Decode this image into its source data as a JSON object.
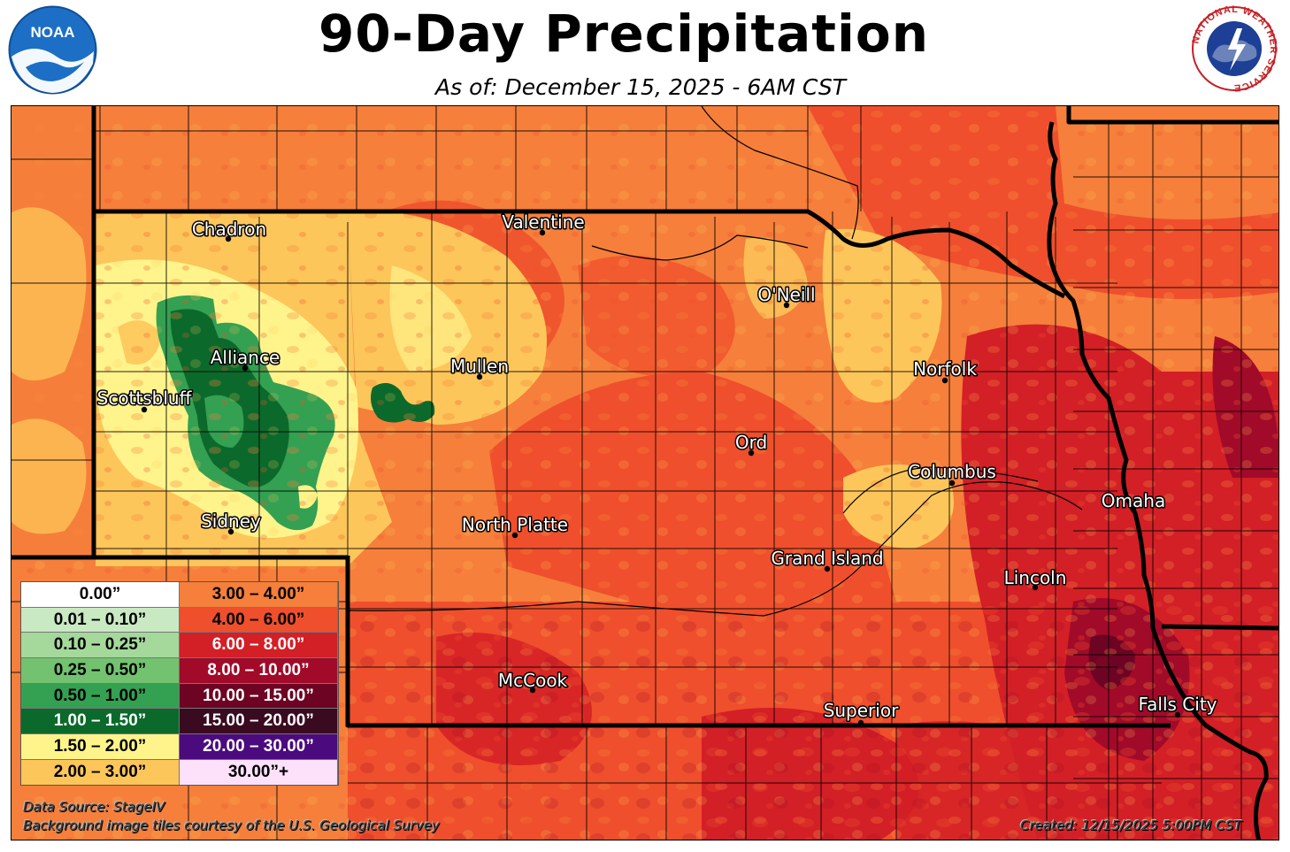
{
  "header": {
    "title": "90-Day Precipitation",
    "subtitle": "As of: December 15, 2025 - 6AM CST"
  },
  "logos": {
    "noaa_text": "NOAA",
    "nws_text": "NATIONAL WEATHER SERVICE"
  },
  "cities": [
    {
      "name": "Chadron"
    },
    {
      "name": "Valentine"
    },
    {
      "name": "O'Neill"
    },
    {
      "name": "Alliance"
    },
    {
      "name": "Mullen"
    },
    {
      "name": "Norfolk"
    },
    {
      "name": "Scottsbluff"
    },
    {
      "name": "Ord"
    },
    {
      "name": "Columbus"
    },
    {
      "name": "Omaha"
    },
    {
      "name": "Sidney"
    },
    {
      "name": "North Platte"
    },
    {
      "name": "Grand Island"
    },
    {
      "name": "Lincoln"
    },
    {
      "name": "McCook"
    },
    {
      "name": "Superior"
    },
    {
      "name": "Falls City"
    }
  ],
  "legend": [
    {
      "label": "0.00”",
      "color": "#ffffff",
      "text_color": "#000000"
    },
    {
      "label": "3.00 – 4.00”",
      "color": "#f57f3b",
      "text_color": "#000000"
    },
    {
      "label": "0.01 – 0.10”",
      "color": "#c9e9c3",
      "text_color": "#000000"
    },
    {
      "label": "4.00 – 6.00”",
      "color": "#ef4f2c",
      "text_color": "#000000"
    },
    {
      "label": "0.10 – 0.25”",
      "color": "#a5d99b",
      "text_color": "#000000"
    },
    {
      "label": "6.00 – 8.00”",
      "color": "#d31f26",
      "text_color": "#ffffff"
    },
    {
      "label": "0.25 – 0.50”",
      "color": "#72c26f",
      "text_color": "#000000"
    },
    {
      "label": "8.00 – 10.00”",
      "color": "#a20a29",
      "text_color": "#ffffff"
    },
    {
      "label": "0.50 – 1.00”",
      "color": "#34a052",
      "text_color": "#000000"
    },
    {
      "label": "10.00 – 15.00”",
      "color": "#6e0423",
      "text_color": "#ffffff"
    },
    {
      "label": "1.00 – 1.50”",
      "color": "#0b6a2b",
      "text_color": "#ffffff"
    },
    {
      "label": "15.00 – 20.00”",
      "color": "#3a0a20",
      "text_color": "#ffffff"
    },
    {
      "label": "1.50 – 2.00”",
      "color": "#fef48b",
      "text_color": "#000000"
    },
    {
      "label": "20.00 – 30.00”",
      "color": "#4b0a7d",
      "text_color": "#ffffff"
    },
    {
      "label": "2.00 – 3.00”",
      "color": "#fdc65a",
      "text_color": "#000000"
    },
    {
      "label": "30.00”+",
      "color": "#fde1fa",
      "text_color": "#000000"
    }
  ],
  "footer": {
    "source": "Data Source: StageIV",
    "credit": "Background image tiles courtesy of the U.S. Geological Survey",
    "created": "Created: 12/15/2025 5:00PM CST"
  }
}
